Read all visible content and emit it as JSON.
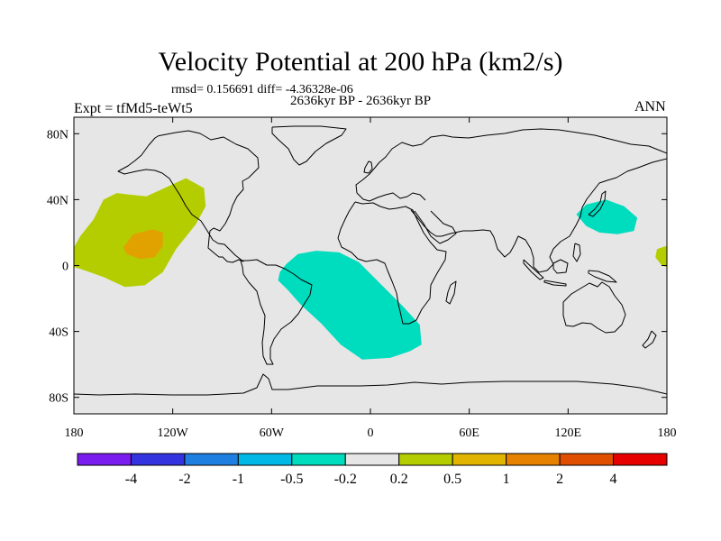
{
  "title": "Velocity Potential at 200 hPa (km2/s)",
  "stats_text": "rmsd= 0.156691 diff= -4.36328e-06",
  "period_text": "2636kyr BP - 2636kyr BP",
  "expt_text": "Expt = tfMd5-teWt5",
  "season_text": "ANN",
  "map": {
    "background_color": "#e6e6e6",
    "lon_ticks": [
      {
        "value": -180,
        "label": "180"
      },
      {
        "value": -120,
        "label": "120W"
      },
      {
        "value": -60,
        "label": "60W"
      },
      {
        "value": 0,
        "label": "0"
      },
      {
        "value": 60,
        "label": "60E"
      },
      {
        "value": 120,
        "label": "120E"
      },
      {
        "value": 180,
        "label": "180"
      }
    ],
    "lat_ticks": [
      {
        "value": 80,
        "label": "80N"
      },
      {
        "value": 40,
        "label": "40N"
      },
      {
        "value": 0,
        "label": "0"
      },
      {
        "value": -40,
        "label": "40S"
      },
      {
        "value": -80,
        "label": "80S"
      }
    ],
    "regions": [
      {
        "name": "north-pacific-positive-anomaly",
        "color": "#b4cd00",
        "points": [
          [
            -180,
            11
          ],
          [
            -176,
            18
          ],
          [
            -168,
            28
          ],
          [
            -162,
            40
          ],
          [
            -154,
            44
          ],
          [
            -146,
            43
          ],
          [
            -136,
            42
          ],
          [
            -125,
            47
          ],
          [
            -112,
            53
          ],
          [
            -101,
            47
          ],
          [
            -100,
            36
          ],
          [
            -106,
            25
          ],
          [
            -118,
            10
          ],
          [
            -126,
            -4
          ],
          [
            -137,
            -12
          ],
          [
            -149,
            -13
          ],
          [
            -162,
            -7
          ],
          [
            -176,
            -2
          ],
          [
            -180,
            -1
          ]
        ]
      },
      {
        "name": "north-pacific-core-anomaly",
        "color": "#e1a200",
        "points": [
          [
            -150,
            11
          ],
          [
            -144,
            19
          ],
          [
            -132,
            22
          ],
          [
            -126,
            20
          ],
          [
            -126,
            12
          ],
          [
            -131,
            5
          ],
          [
            -140,
            4
          ],
          [
            -148,
            7
          ]
        ]
      },
      {
        "name": "south-atlantic-negative-anomaly",
        "color": "#00dcbe",
        "points": [
          [
            -55,
            -4
          ],
          [
            -51,
            1
          ],
          [
            -44,
            7
          ],
          [
            -33,
            9
          ],
          [
            -19,
            8
          ],
          [
            -7,
            2
          ],
          [
            6,
            -11
          ],
          [
            20,
            -25
          ],
          [
            30,
            -36
          ],
          [
            31,
            -48
          ],
          [
            24,
            -52
          ],
          [
            12,
            -56
          ],
          [
            -5,
            -57
          ],
          [
            -18,
            -48
          ],
          [
            -30,
            -35
          ],
          [
            -42,
            -24
          ],
          [
            -50,
            -15
          ],
          [
            -56,
            -9
          ]
        ]
      },
      {
        "name": "west-pacific-negative-anomaly",
        "color": "#00dcbe",
        "points": [
          [
            125,
            31
          ],
          [
            131,
            37
          ],
          [
            143,
            40
          ],
          [
            154,
            36
          ],
          [
            162,
            29
          ],
          [
            160,
            21
          ],
          [
            150,
            19
          ],
          [
            139,
            20
          ],
          [
            131,
            24
          ]
        ]
      },
      {
        "name": "dateline-positive-anomaly",
        "color": "#b4cd00",
        "points": [
          [
            180,
            12
          ],
          [
            174,
            10
          ],
          [
            173,
            5
          ],
          [
            177,
            0
          ],
          [
            180,
            -1
          ]
        ]
      }
    ]
  },
  "colorbar": {
    "colors": [
      "#7a1cf0",
      "#3333e0",
      "#1f7fe0",
      "#00b8e6",
      "#00dcbe",
      "#e6e6e6",
      "#b4cd00",
      "#e1b400",
      "#e68200",
      "#e04f00",
      "#e60000"
    ],
    "labels": [
      "-4",
      "-2",
      "-1",
      "-0.5",
      "-0.2",
      "0.2",
      "0.5",
      "1",
      "2",
      "4"
    ]
  }
}
